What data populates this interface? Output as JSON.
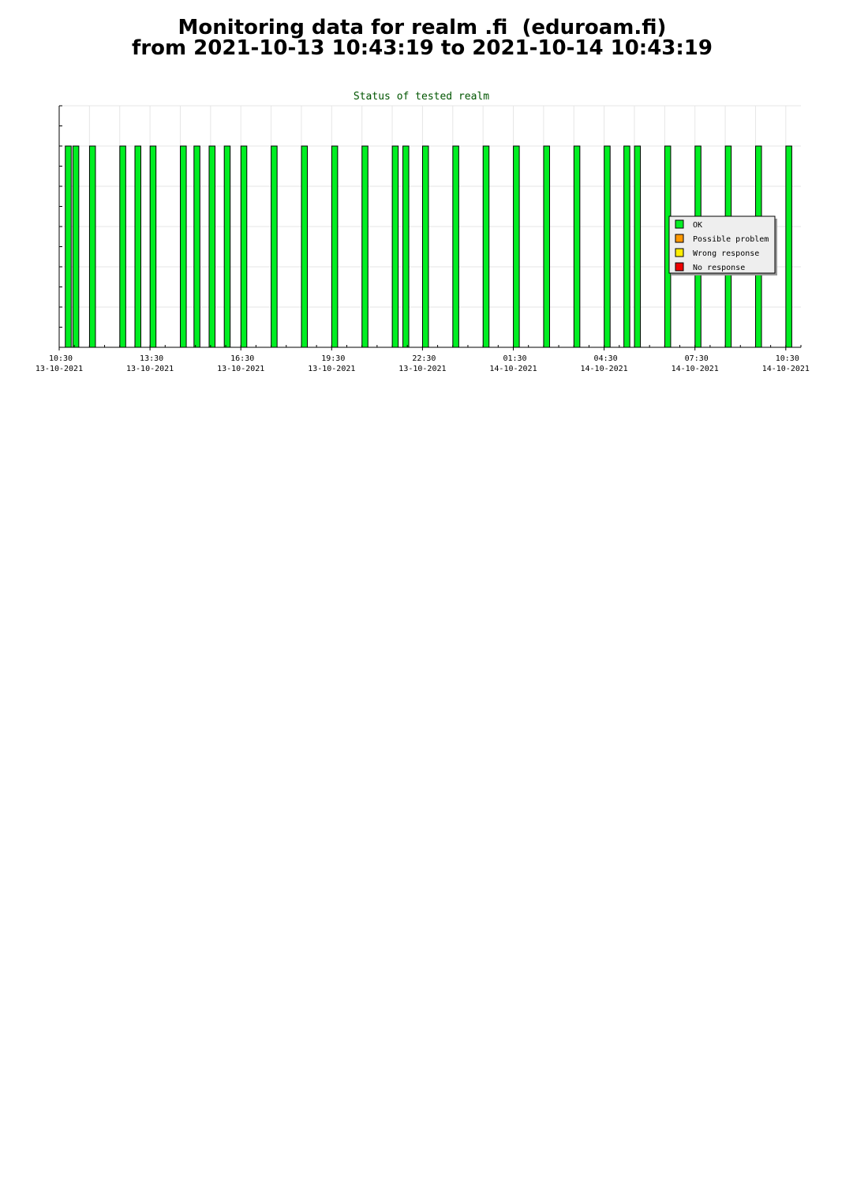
{
  "page": {
    "title_line1": "Monitoring data for realm .fi  (eduroam.fi)",
    "title_line2": "from 2021-10-13 10:43:19 to 2021-10-14 10:43:19"
  },
  "chart_data": {
    "type": "bar",
    "title": "Status of tested realm",
    "xlabel": "",
    "ylabel": "",
    "x_unit": "hours since 13-10-2021 10:30",
    "x_ticks": [
      {
        "x": 0,
        "time": "10:30",
        "date": "13-10-2021"
      },
      {
        "x": 3,
        "time": "13:30",
        "date": "13-10-2021"
      },
      {
        "x": 6,
        "time": "16:30",
        "date": "13-10-2021"
      },
      {
        "x": 9,
        "time": "19:30",
        "date": "13-10-2021"
      },
      {
        "x": 12,
        "time": "22:30",
        "date": "13-10-2021"
      },
      {
        "x": 15,
        "time": "01:30",
        "date": "14-10-2021"
      },
      {
        "x": 18,
        "time": "04:30",
        "date": "14-10-2021"
      },
      {
        "x": 21,
        "time": "07:30",
        "date": "14-10-2021"
      },
      {
        "x": 24,
        "time": "10:30",
        "date": "14-10-2021"
      }
    ],
    "xlim": [
      0,
      24.5
    ],
    "ylim": [
      0,
      1.2
    ],
    "grid": true,
    "legend_position": "right",
    "series": [
      {
        "name": "OK",
        "color": "#00ee22",
        "value": 1,
        "x": [
          0.3,
          0.55,
          1.1,
          2.1,
          2.6,
          3.1,
          4.1,
          4.55,
          5.05,
          5.55,
          6.1,
          7.1,
          8.1,
          9.1,
          10.1,
          11.1,
          11.45,
          12.1,
          13.1,
          14.1,
          15.1,
          16.1,
          17.1,
          18.1,
          18.75,
          19.1,
          20.1,
          21.1,
          22.1,
          23.1,
          24.1
        ]
      }
    ],
    "legend": [
      {
        "label": "OK",
        "color": "#00ee22"
      },
      {
        "label": "Possible problem",
        "color": "#ff9900"
      },
      {
        "label": "Wrong response",
        "color": "#ffee00"
      },
      {
        "label": "No response",
        "color": "#ee0000"
      }
    ]
  }
}
